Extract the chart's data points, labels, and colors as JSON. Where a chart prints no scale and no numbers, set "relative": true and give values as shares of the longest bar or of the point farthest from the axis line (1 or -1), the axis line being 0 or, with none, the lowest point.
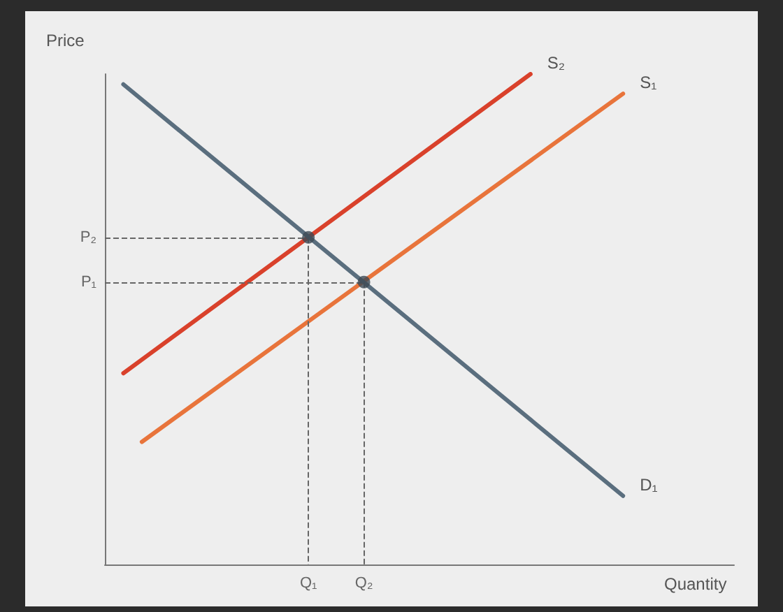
{
  "chart_data": {
    "type": "line",
    "relative": true,
    "xlabel": "Quantity",
    "ylabel": "Price",
    "grid": false,
    "legend": false,
    "marker": "none",
    "line_style": "solid",
    "categories": [
      null,
      null,
      null,
      null,
      null,
      null,
      null,
      null,
      null,
      null,
      null,
      "Q₁",
      null,
      null,
      "Q₂",
      null,
      null,
      null,
      null,
      null,
      null,
      null,
      null,
      null,
      null,
      null,
      null,
      null,
      null,
      null,
      null,
      null,
      null,
      null,
      null
    ],
    "annotations": [
      "P₂",
      "P₁"
    ],
    "series": [
      {
        "name": "S₂",
        "color": "#d9412b",
        "values": [
          null,
          0.39,
          null,
          null,
          null,
          null,
          null,
          null,
          null,
          null,
          null,
          null,
          null,
          null,
          null,
          null,
          null,
          null,
          null,
          null,
          null,
          null,
          null,
          1.0,
          null,
          null,
          null,
          null,
          null,
          null,
          null,
          null,
          null,
          null,
          null
        ]
      },
      {
        "name": "S₁",
        "color": "#e8743b",
        "values": [
          null,
          null,
          0.25,
          null,
          null,
          null,
          null,
          null,
          null,
          null,
          null,
          null,
          null,
          null,
          null,
          null,
          null,
          null,
          null,
          null,
          null,
          null,
          null,
          null,
          null,
          null,
          null,
          null,
          0.96,
          null,
          null,
          null,
          null,
          null,
          null
        ]
      },
      {
        "name": "D₁",
        "color": "#5a6e7e",
        "values": [
          null,
          0.979,
          null,
          null,
          null,
          null,
          null,
          null,
          null,
          null,
          null,
          null,
          null,
          null,
          null,
          null,
          null,
          null,
          null,
          null,
          null,
          null,
          null,
          null,
          null,
          null,
          null,
          null,
          0.14,
          null,
          null,
          null,
          null,
          null,
          null
        ]
      },
      {
        "type": "scatter",
        "color": "#3d4a55",
        "marker": "circle",
        "line_style": "dashed",
        "values": [
          null,
          null,
          null,
          null,
          null,
          null,
          null,
          null,
          null,
          null,
          null,
          0.667,
          null,
          null,
          0.576,
          null,
          null,
          null,
          null,
          null,
          null,
          null,
          null,
          null,
          null,
          null,
          null,
          null,
          null,
          null,
          null,
          null,
          null,
          null,
          null
        ]
      }
    ]
  }
}
